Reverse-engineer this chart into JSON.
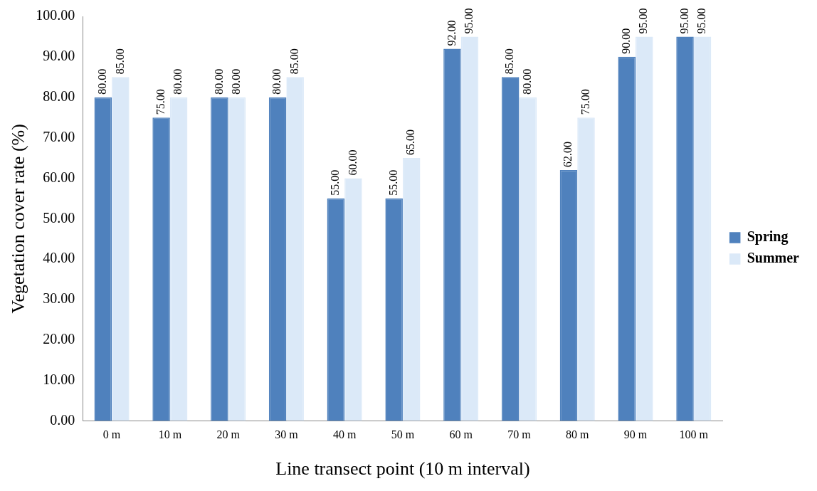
{
  "chart_data": {
    "type": "bar",
    "xlabel": "Line transect point (10 m interval)",
    "ylabel": "Vegetation cover rate (%)",
    "categories": [
      "0 m",
      "10 m",
      "20 m",
      "30 m",
      "40 m",
      "50 m",
      "60 m",
      "70 m",
      "80 m",
      "90 m",
      "100 m"
    ],
    "series": [
      {
        "name": "Spring",
        "color": "#4f81bd",
        "values": [
          80,
          75,
          80,
          80,
          55,
          55,
          92,
          85,
          62,
          90,
          95
        ],
        "value_labels": [
          "80.00",
          "75.00",
          "80.00",
          "80.00",
          "55.00",
          "55.00",
          "92.00",
          "85.00",
          "62.00",
          "90.00",
          "95.00"
        ]
      },
      {
        "name": "Summer",
        "color": "#dbe9f8",
        "values": [
          85,
          80,
          80,
          85,
          60,
          65,
          95,
          80,
          75,
          95,
          95
        ],
        "value_labels": [
          "85.00",
          "80.00",
          "80.00",
          "85.00",
          "60.00",
          "65.00",
          "95.00",
          "80.00",
          "75.00",
          "95.00",
          "95.00"
        ]
      }
    ],
    "ylim": [
      0,
      100
    ],
    "yticks": [
      {
        "value": 0,
        "label": "0.00"
      },
      {
        "value": 10,
        "label": "10.00"
      },
      {
        "value": 20,
        "label": "20.00"
      },
      {
        "value": 30,
        "label": "30.00"
      },
      {
        "value": 40,
        "label": "40.00"
      },
      {
        "value": 50,
        "label": "50.00"
      },
      {
        "value": 60,
        "label": "60.00"
      },
      {
        "value": 70,
        "label": "70.00"
      },
      {
        "value": 80,
        "label": "80.00"
      },
      {
        "value": 90,
        "label": "90.00"
      },
      {
        "value": 100,
        "label": "100.00"
      }
    ],
    "grid": false,
    "legend": "right"
  }
}
